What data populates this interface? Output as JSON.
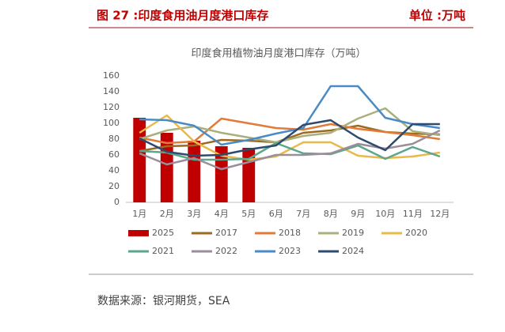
{
  "header": {
    "title": "图 27 :印度食用油月度港口库存",
    "unit": "单位 :万吨"
  },
  "chart_data": {
    "type": "bar",
    "title": "印度食用植物油月度港口库存（万吨）",
    "categories": [
      "1月",
      "2月",
      "3月",
      "4月",
      "5月",
      "6月",
      "7月",
      "8月",
      "9月",
      "10月",
      "11月",
      "12月"
    ],
    "ylim": [
      0,
      160
    ],
    "yticks": [
      0,
      20,
      40,
      60,
      80,
      100,
      120,
      140,
      160
    ],
    "grid": false,
    "series": [
      {
        "name": "2025",
        "type": "bar",
        "color": "#c00000",
        "values": [
          107,
          88,
          78,
          71,
          69,
          null,
          null,
          null,
          null,
          null,
          null,
          null
        ]
      },
      {
        "name": "2017",
        "type": "line",
        "color": "#9c6b1f",
        "values": [
          65,
          71,
          72,
          79,
          78,
          76,
          88,
          91,
          97,
          89,
          87,
          86
        ]
      },
      {
        "name": "2018",
        "type": "line",
        "color": "#e07b39",
        "values": [
          82,
          75,
          77,
          106,
          100,
          94,
          92,
          99,
          93,
          89,
          85,
          80
        ]
      },
      {
        "name": "2019",
        "type": "line",
        "color": "#a9b07c",
        "values": [
          80,
          91,
          96,
          88,
          82,
          76,
          84,
          88,
          106,
          119,
          90,
          85
        ]
      },
      {
        "name": "2020",
        "type": "line",
        "color": "#e9b949",
        "values": [
          88,
          110,
          77,
          59,
          54,
          58,
          76,
          76,
          59,
          56,
          58,
          63
        ]
      },
      {
        "name": "2021",
        "type": "line",
        "color": "#5ca68c",
        "values": [
          65,
          63,
          54,
          54,
          55,
          75,
          62,
          61,
          72,
          55,
          70,
          58
        ]
      },
      {
        "name": "2022",
        "type": "line",
        "color": "#9a8e9a",
        "values": [
          62,
          48,
          56,
          42,
          51,
          60,
          60,
          62,
          74,
          68,
          74,
          91
        ]
      },
      {
        "name": "2023",
        "type": "line",
        "color": "#4a8ac6",
        "values": [
          105,
          104,
          97,
          73,
          79,
          87,
          94,
          147,
          147,
          107,
          99,
          94
        ]
      },
      {
        "name": "2024",
        "type": "line",
        "color": "#2d4b6f",
        "values": [
          81,
          64,
          59,
          60,
          67,
          72,
          98,
          104,
          82,
          66,
          99,
          99
        ]
      }
    ]
  },
  "source": "数据来源：银河期货，SEA"
}
